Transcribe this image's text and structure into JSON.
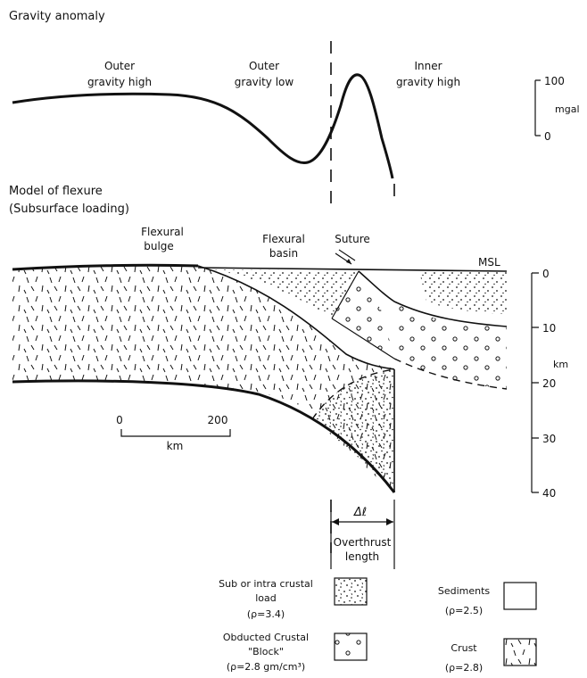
{
  "gravity": {
    "title": "Gravity anomaly",
    "outer_high": [
      "Outer",
      "gravity high"
    ],
    "outer_low": [
      "Outer",
      "gravity low"
    ],
    "inner_high": [
      "Inner",
      "gravity high"
    ],
    "scale_top": "100",
    "scale_unit": "mgal",
    "scale_bottom": "0"
  },
  "model": {
    "title": "Model of flexure",
    "subtitle": "(Subsurface loading)",
    "flexural_bulge": [
      "Flexural",
      "bulge"
    ],
    "flexural_basin": [
      "Flexural",
      "basin"
    ],
    "suture": "Suture",
    "msl": "MSL",
    "depth_ticks": [
      "0",
      "10",
      "20",
      "30",
      "40"
    ],
    "depth_unit": "km",
    "scalebar_start": "0",
    "scalebar_end": "200",
    "scalebar_unit": "km",
    "delta_label": "Δℓ",
    "overthrust": [
      "Overthrust",
      "length"
    ]
  },
  "legend": {
    "load": [
      "Sub or intra crustal",
      "load",
      "(ρ=3.4)"
    ],
    "sediments": [
      "Sediments",
      "(ρ=2.5)"
    ],
    "obducted": [
      "Obducted Crustal",
      "\"Block\"",
      "(ρ=2.8 gm/cm³)"
    ],
    "crust": [
      "Crust",
      "(ρ=2.8)"
    ]
  }
}
